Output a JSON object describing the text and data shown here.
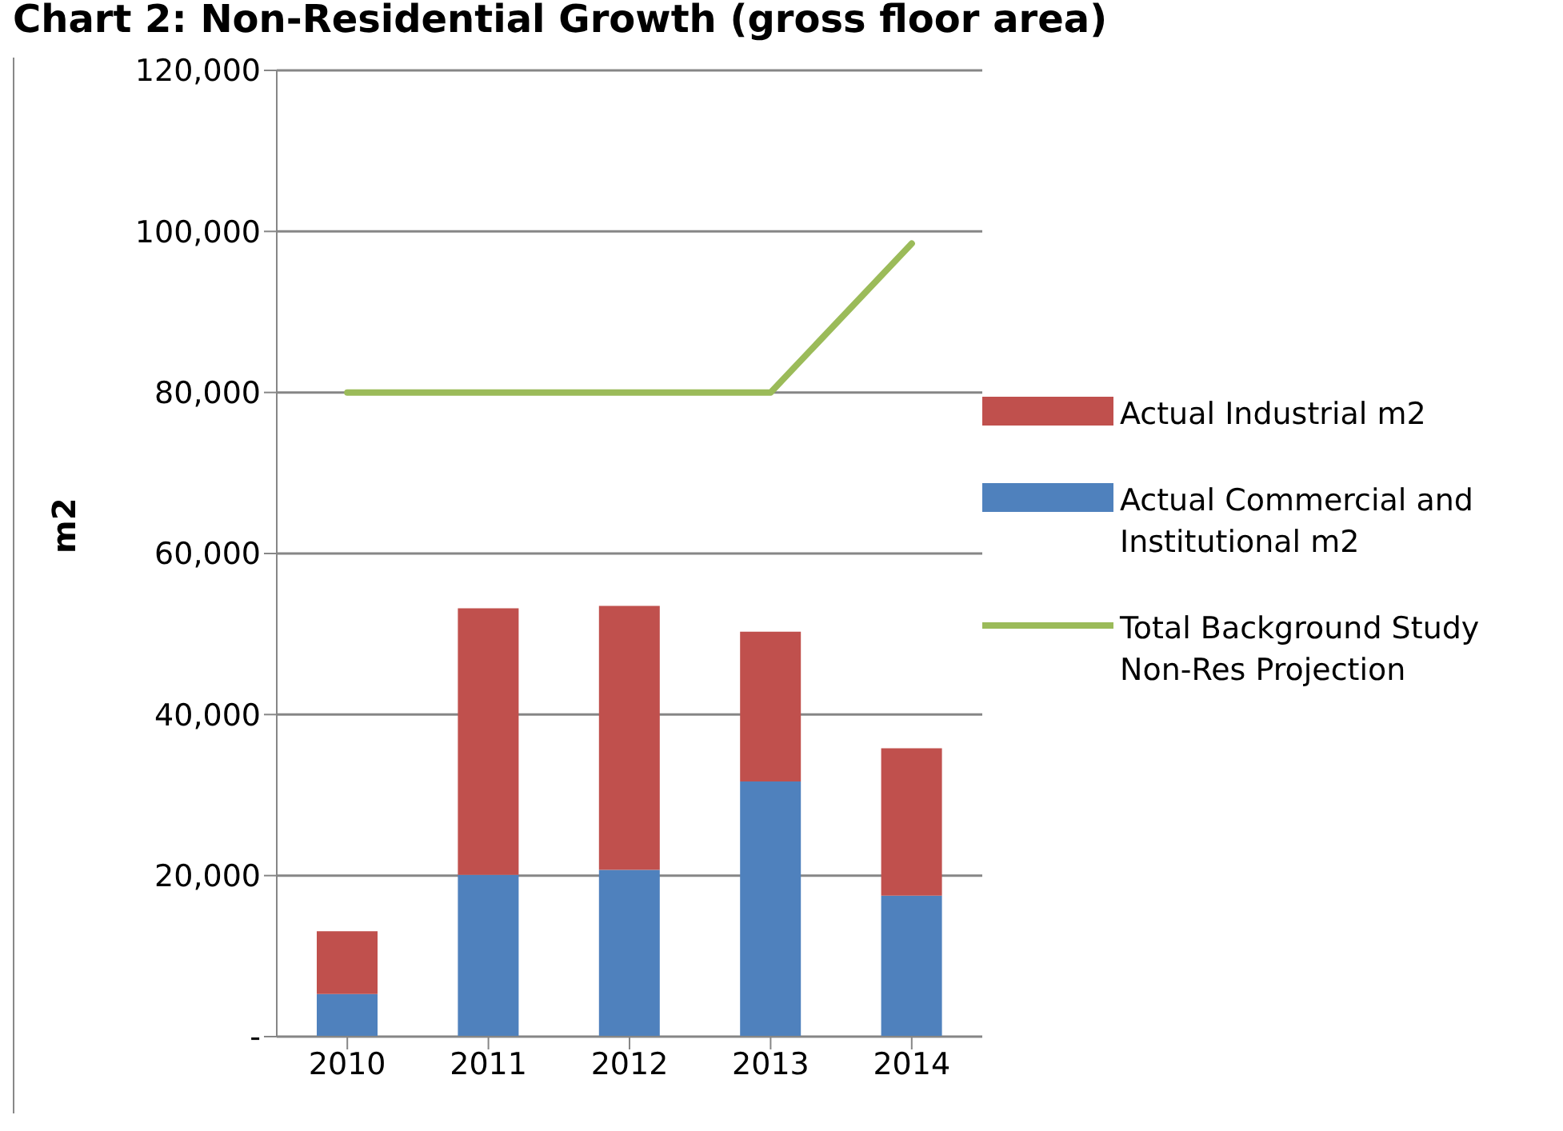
{
  "chart_data": {
    "type": "bar",
    "title": "Chart 2:  Non-Residential Growth (gross floor area)",
    "ylabel": "m2",
    "categories": [
      "2010",
      "2011",
      "2012",
      "2013",
      "2014"
    ],
    "stacked": true,
    "series": [
      {
        "name": "Actual Commercial and Institutional m2",
        "color": "#4f81bd",
        "values": [
          5300,
          20100,
          20700,
          31700,
          17500
        ]
      },
      {
        "name": "Actual Industrial m2",
        "color": "#c0504d",
        "values": [
          7800,
          33100,
          32800,
          18600,
          18300
        ]
      },
      {
        "name": "Total Background Study Non-Res Projection",
        "type": "line",
        "color": "#9bbb59",
        "values": [
          80000,
          80000,
          80000,
          80000,
          98500
        ]
      }
    ],
    "ylim": [
      0,
      120000
    ],
    "yticks": [
      {
        "value": 0,
        "label": "-"
      },
      {
        "value": 20000,
        "label": "20,000"
      },
      {
        "value": 40000,
        "label": "40,000"
      },
      {
        "value": 60000,
        "label": "60,000"
      },
      {
        "value": 80000,
        "label": "80,000"
      },
      {
        "value": 100000,
        "label": "100,000"
      },
      {
        "value": 120000,
        "label": "120,000"
      }
    ],
    "grid": "y",
    "legend": "right",
    "marker": "none"
  }
}
